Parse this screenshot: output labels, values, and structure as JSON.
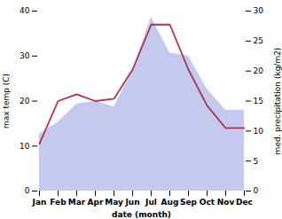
{
  "chart_data": {
    "type": "line",
    "xlabel": "date (month)",
    "ylabel": "max temp (C)",
    "y2label": "med. precipitation (kg/m2)",
    "categories": [
      "Jan",
      "Feb",
      "Mar",
      "Apr",
      "May",
      "Jun",
      "Jul",
      "Aug",
      "Sep",
      "Oct",
      "Nov",
      "Dec"
    ],
    "series": [
      {
        "type": "area",
        "axis": "y2",
        "color": "#b0b8e8",
        "values": [
          9.5,
          11.5,
          14.5,
          15.0,
          14.0,
          20.0,
          29.0,
          23.0,
          22.5,
          17.0,
          13.5,
          13.5
        ]
      },
      {
        "type": "line",
        "color": "#b03050",
        "values": [
          10.5,
          20.0,
          21.5,
          20.0,
          20.5,
          27.0,
          37.0,
          37.0,
          27.0,
          19.0,
          14.0,
          14.0
        ]
      }
    ],
    "ylim": [
      0,
      40
    ],
    "yticks": [
      0,
      10,
      20,
      30,
      40
    ],
    "y2lim": [
      0,
      30
    ],
    "y2ticks": [
      0,
      5,
      10,
      15,
      20,
      25,
      30
    ]
  }
}
